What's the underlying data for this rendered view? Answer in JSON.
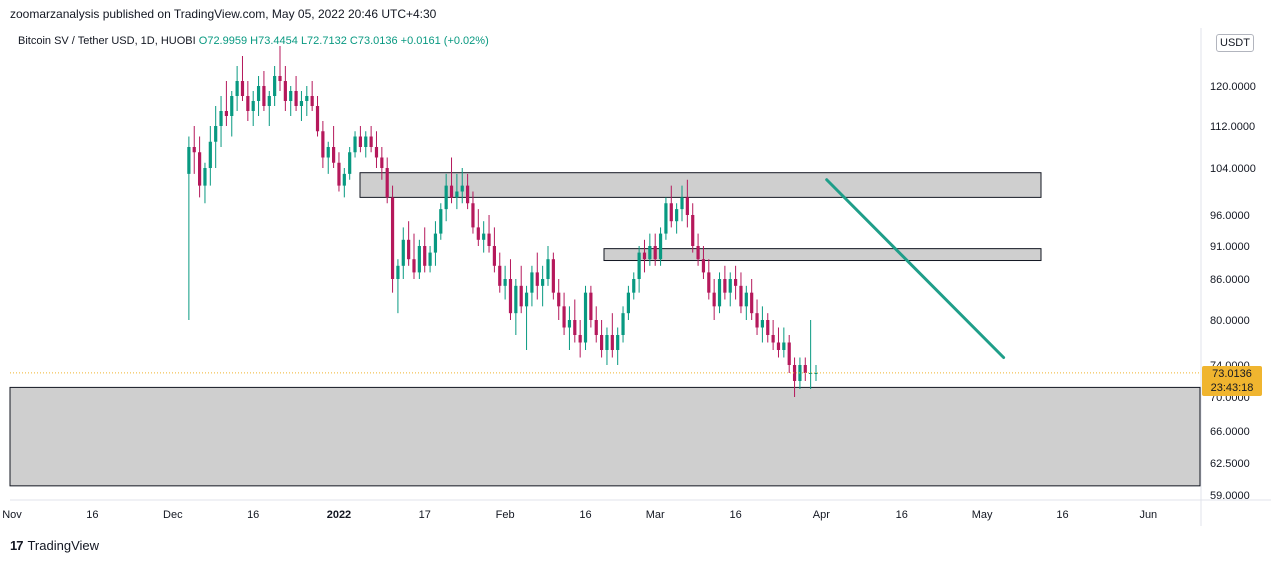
{
  "header": {
    "text": "zoomarzanalysis published on TradingView.com, May 05, 2022 20:46 UTC+4:30"
  },
  "legend": {
    "symbol": "Bitcoin SV / Tether USD, 1D, HUOBI",
    "open": "O72.9959",
    "high": "H73.4454",
    "low": "L72.7132",
    "close": "C73.0136",
    "change": "+0.0161 (+0.02%)"
  },
  "currency": "USDT",
  "last_price": {
    "price": "73.0136",
    "countdown": "23:43:18"
  },
  "footer": {
    "brand": "TradingView",
    "logo_text": "17"
  },
  "colors": {
    "up": "#089981",
    "down": "#b5185b",
    "trendline": "#1f9e89",
    "zone_fill": "#cfcfcf",
    "price_tag": "#f0b52f"
  },
  "chart_data": {
    "type": "candlestick",
    "y_ticks": [
      "120.0000",
      "112.0000",
      "104.0000",
      "96.0000",
      "91.0000",
      "86.0000",
      "80.0000",
      "74.0000",
      "70.0000",
      "66.0000",
      "62.5000",
      "59.0000"
    ],
    "x_ticks": [
      "Nov",
      "16",
      "Dec",
      "16",
      "2022",
      "17",
      "Feb",
      "16",
      "Mar",
      "16",
      "Apr",
      "16",
      "May",
      "16",
      "Jun"
    ],
    "zones": [
      {
        "name": "resistance-upper",
        "low": 99.0,
        "high": 103.2
      },
      {
        "name": "resistance-mid",
        "low": 88.8,
        "high": 90.6
      },
      {
        "name": "support",
        "low": 60.0,
        "high": 71.2
      }
    ],
    "trendline": {
      "from": {
        "date": "2022-04-02",
        "price": 102.0
      },
      "to": {
        "date": "2022-05-05",
        "price": 75.0
      }
    },
    "last_price_line": 73.0136,
    "candles": [
      [
        103,
        110,
        80,
        108
      ],
      [
        108,
        112,
        103,
        107
      ],
      [
        107,
        110,
        99,
        101
      ],
      [
        101,
        105,
        98,
        104
      ],
      [
        104,
        112,
        101,
        109
      ],
      [
        109,
        116,
        104,
        112
      ],
      [
        112,
        118,
        108,
        115
      ],
      [
        115,
        121,
        112,
        114
      ],
      [
        114,
        119,
        110,
        118
      ],
      [
        118,
        124,
        115,
        121
      ],
      [
        121,
        126,
        117,
        118
      ],
      [
        118,
        121,
        113,
        115
      ],
      [
        115,
        119,
        112,
        117
      ],
      [
        117,
        122,
        114,
        120
      ],
      [
        120,
        123,
        115,
        116
      ],
      [
        116,
        119,
        112,
        118
      ],
      [
        118,
        124,
        116,
        122
      ],
      [
        122,
        128,
        119,
        121
      ],
      [
        121,
        124,
        115,
        117
      ],
      [
        117,
        120,
        114,
        119
      ],
      [
        119,
        122,
        115,
        116
      ],
      [
        116,
        119,
        113,
        117
      ],
      [
        117,
        120,
        114,
        118
      ],
      [
        118,
        121,
        115,
        116
      ],
      [
        116,
        118,
        110,
        111
      ],
      [
        111,
        113,
        104,
        106
      ],
      [
        106,
        109,
        103,
        108
      ],
      [
        108,
        112,
        104,
        105
      ],
      [
        105,
        107,
        100,
        101
      ],
      [
        101,
        104,
        99,
        103
      ],
      [
        103,
        108,
        102,
        107
      ],
      [
        107,
        111,
        106,
        110
      ],
      [
        110,
        112,
        107,
        108
      ],
      [
        108,
        111,
        106,
        110
      ],
      [
        110,
        112,
        107,
        108
      ],
      [
        108,
        111,
        104,
        106
      ],
      [
        106,
        108,
        102,
        104
      ],
      [
        104,
        106,
        98,
        99
      ],
      [
        99,
        101,
        84,
        86
      ],
      [
        86,
        89,
        81,
        88
      ],
      [
        88,
        94,
        86,
        92
      ],
      [
        92,
        95,
        88,
        89
      ],
      [
        89,
        93,
        86,
        87
      ],
      [
        87,
        92,
        86,
        91
      ],
      [
        91,
        94,
        87,
        88
      ],
      [
        88,
        91,
        87,
        90
      ],
      [
        90,
        95,
        88,
        93
      ],
      [
        93,
        98,
        92,
        97
      ],
      [
        97,
        103,
        95,
        101
      ],
      [
        101,
        106,
        98,
        99
      ],
      [
        99,
        103,
        97,
        100
      ],
      [
        100,
        104,
        98,
        101
      ],
      [
        101,
        103,
        97,
        98
      ],
      [
        98,
        100,
        93,
        94
      ],
      [
        94,
        97,
        91,
        92
      ],
      [
        92,
        95,
        90,
        93
      ],
      [
        93,
        96,
        90,
        91
      ],
      [
        91,
        94,
        87,
        88
      ],
      [
        88,
        90,
        84,
        85
      ],
      [
        85,
        88,
        83,
        86
      ],
      [
        86,
        89,
        80,
        81
      ],
      [
        81,
        86,
        78,
        85
      ],
      [
        85,
        88,
        81,
        82
      ],
      [
        82,
        85,
        76,
        84
      ],
      [
        84,
        88,
        82,
        87
      ],
      [
        87,
        90,
        83,
        85
      ],
      [
        85,
        88,
        82,
        86
      ],
      [
        86,
        91,
        85,
        89
      ],
      [
        89,
        90,
        83,
        84
      ],
      [
        84,
        86,
        80,
        82
      ],
      [
        82,
        84,
        78,
        79
      ],
      [
        79,
        82,
        76,
        80
      ],
      [
        80,
        83,
        77,
        78
      ],
      [
        78,
        80,
        75,
        77
      ],
      [
        77,
        85,
        76,
        84
      ],
      [
        84,
        85,
        79,
        80
      ],
      [
        80,
        82,
        77,
        78
      ],
      [
        78,
        80,
        75,
        76
      ],
      [
        76,
        79,
        74,
        78
      ],
      [
        78,
        81,
        75,
        76
      ],
      [
        76,
        79,
        74,
        78
      ],
      [
        78,
        82,
        77,
        81
      ],
      [
        81,
        85,
        80,
        84
      ],
      [
        84,
        87,
        83,
        86
      ],
      [
        86,
        91,
        84,
        90
      ],
      [
        90,
        92,
        87,
        89
      ],
      [
        89,
        93,
        88,
        91
      ],
      [
        91,
        93,
        88,
        89
      ],
      [
        89,
        94,
        88,
        93
      ],
      [
        93,
        99,
        92,
        98
      ],
      [
        98,
        101,
        94,
        95
      ],
      [
        95,
        98,
        93,
        97
      ],
      [
        97,
        101,
        95,
        99
      ],
      [
        99,
        102,
        94,
        96
      ],
      [
        96,
        98,
        90,
        91
      ],
      [
        91,
        93,
        88,
        89
      ],
      [
        89,
        91,
        86,
        87
      ],
      [
        87,
        89,
        83,
        84
      ],
      [
        84,
        86,
        80,
        82
      ],
      [
        82,
        87,
        81,
        86
      ],
      [
        86,
        88,
        83,
        84
      ],
      [
        84,
        87,
        82,
        86
      ],
      [
        86,
        88,
        83,
        85
      ],
      [
        85,
        87,
        81,
        82
      ],
      [
        82,
        85,
        80,
        84
      ],
      [
        84,
        86,
        80,
        81
      ],
      [
        81,
        83,
        78,
        79
      ],
      [
        79,
        82,
        77,
        80
      ],
      [
        80,
        81,
        77,
        78
      ],
      [
        78,
        80,
        76,
        77
      ],
      [
        77,
        79,
        75,
        76
      ],
      [
        76,
        79,
        75,
        77
      ],
      [
        77,
        78,
        73,
        74
      ],
      [
        74,
        75,
        70,
        72
      ],
      [
        72,
        75,
        71,
        74
      ],
      [
        74,
        75,
        72,
        73
      ],
      [
        73,
        80,
        71,
        73
      ],
      [
        73,
        74,
        72,
        73
      ]
    ]
  }
}
